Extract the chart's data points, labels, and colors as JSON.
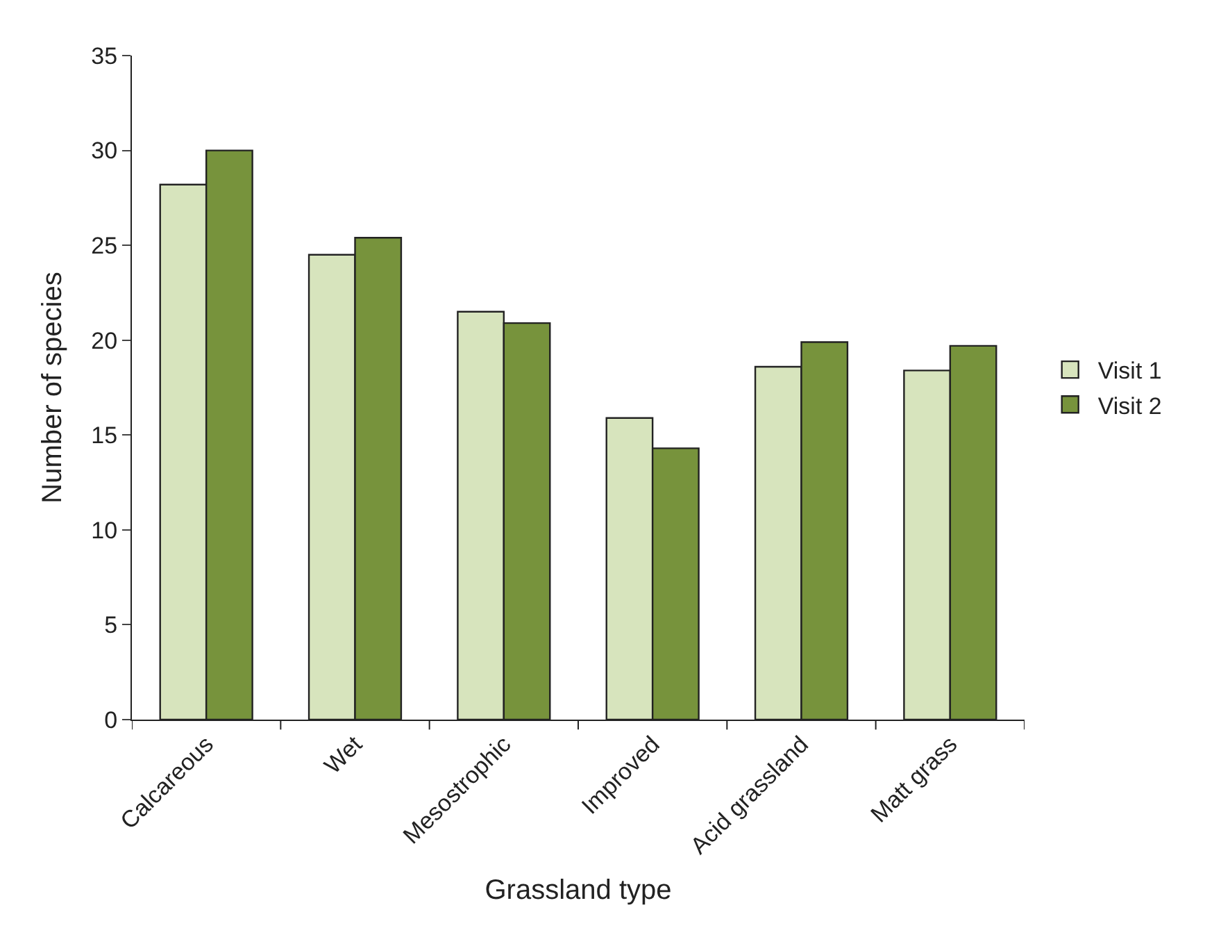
{
  "chart_data": {
    "type": "bar",
    "xlabel": "Grassland type",
    "ylabel": "Number of species",
    "categories": [
      "Calcareous",
      "Wet",
      "Mesostrophic",
      "Improved",
      "Acid grassland",
      "Matt grass"
    ],
    "series": [
      {
        "name": "Visit 1",
        "color": "#d7e4bd",
        "values": [
          28.2,
          24.5,
          21.5,
          15.9,
          18.6,
          18.4
        ]
      },
      {
        "name": "Visit 2",
        "color": "#77933c",
        "values": [
          30.0,
          25.4,
          20.9,
          14.3,
          19.9,
          19.7
        ]
      }
    ],
    "ylim": [
      0,
      35
    ],
    "yticks": [
      0,
      5,
      10,
      15,
      20,
      25,
      30,
      35
    ],
    "grid": false,
    "legend": "right"
  }
}
